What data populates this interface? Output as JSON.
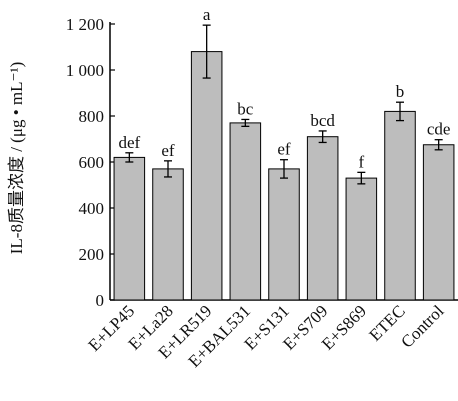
{
  "chart_data": {
    "type": "bar",
    "title": "",
    "xlabel": "",
    "ylabel": "IL-8质量浓度 / (μg • mL⁻¹)",
    "ylim": [
      0,
      1200
    ],
    "yticks": [
      0,
      200,
      400,
      600,
      800,
      1000,
      1200
    ],
    "ytick_labels": [
      "0",
      "200",
      "400",
      "600",
      "800",
      "1 000",
      "1 200"
    ],
    "grid": false,
    "legend": "none",
    "categories": [
      "E+LP45",
      "E+La28",
      "E+LR519",
      "E+BAL531",
      "E+S131",
      "E+S709",
      "E+S869",
      "ETEC",
      "Control"
    ],
    "values": [
      620,
      570,
      1080,
      770,
      570,
      710,
      530,
      820,
      675
    ],
    "errors": [
      20,
      35,
      115,
      15,
      40,
      25,
      25,
      40,
      22
    ],
    "significance": [
      "def",
      "ef",
      "a",
      "bc",
      "ef",
      "bcd",
      "f",
      "b",
      "cde"
    ],
    "bar_color": "#bdbdbd",
    "bar_edge_color": "#000000"
  }
}
